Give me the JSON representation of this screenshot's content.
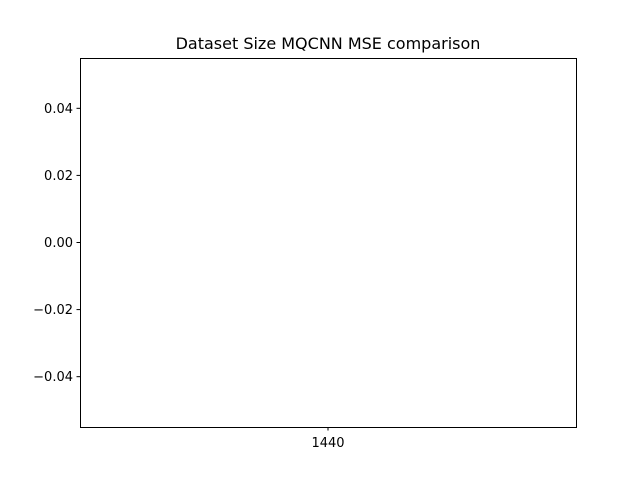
{
  "chart_data": {
    "type": "bar",
    "title": "Dataset Size MQCNN MSE comparison",
    "xlabel": "",
    "ylabel": "",
    "categories": [
      "1440"
    ],
    "values": [
      0
    ],
    "ylim": [
      -0.055,
      0.055
    ],
    "yticks": [
      0.04,
      0.02,
      0.0,
      -0.02,
      -0.04
    ],
    "ytick_labels": [
      "0.04",
      "0.02",
      "0.00",
      "−0.02",
      "−0.04"
    ],
    "grid": false,
    "legend": "none"
  }
}
